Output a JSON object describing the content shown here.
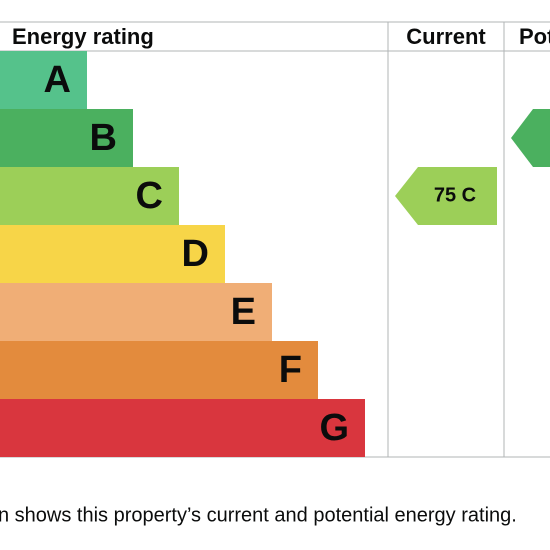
{
  "header": {
    "columns": [
      "Energy rating",
      "Current",
      "Pot"
    ]
  },
  "bands": [
    "A",
    "B",
    "C",
    "D",
    "E",
    "F",
    "G"
  ],
  "current": {
    "label": "75 C"
  },
  "caption": "n shows this property’s current and potential energy rating."
}
